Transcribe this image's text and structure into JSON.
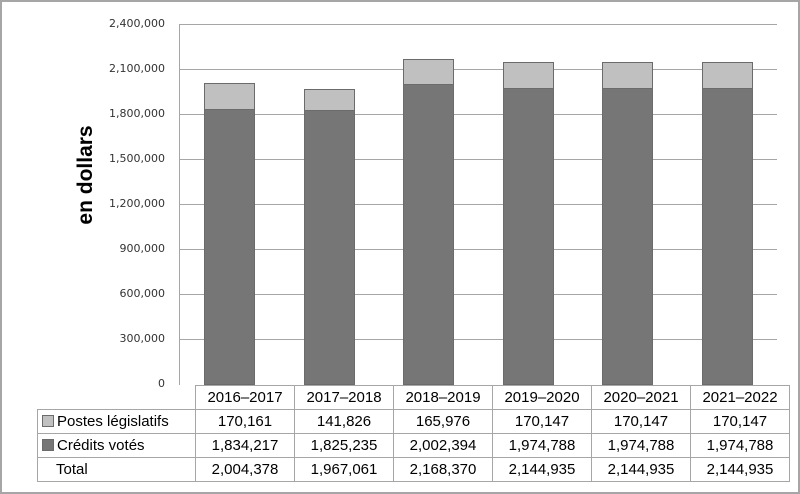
{
  "chart_data": {
    "type": "bar",
    "stacked": true,
    "title": "",
    "xlabel": "",
    "ylabel": "en dollars",
    "ylim": [
      0,
      2400000
    ],
    "yticks": [
      "0",
      "300,000",
      "600,000",
      "900,000",
      "1,200,000",
      "1,500,000",
      "1,800,000",
      "2,100,000",
      "2,400,000"
    ],
    "grid": true,
    "legend_position": "data-table",
    "categories": [
      "2016–2017",
      "2017–2018",
      "2018–2019",
      "2019–2020",
      "2020–2021",
      "2021–2022"
    ],
    "series": [
      {
        "name": "Crédits votés",
        "color": "#767676",
        "values": [
          1834217,
          1825235,
          2002394,
          1974788,
          1974788,
          1974788
        ]
      },
      {
        "name": "Postes législatifs",
        "color": "#c0c0c0",
        "values": [
          170161,
          141826,
          165976,
          170147,
          170147,
          170147
        ]
      }
    ],
    "totals": [
      2004378,
      1967061,
      2168370,
      2144935,
      2144935,
      2144935
    ]
  },
  "axis": {
    "ylabel": "en dollars",
    "ticks": [
      "2,400,000",
      "2,100,000",
      "1,800,000",
      "1,500,000",
      "1,200,000",
      "900,000",
      "600,000",
      "300,000",
      "0"
    ]
  },
  "table": {
    "headers": [
      "2016–2017",
      "2017–2018",
      "2018–2019",
      "2019–2020",
      "2020–2021",
      "2021–2022"
    ],
    "rows": [
      {
        "label": "Postes législatifs",
        "values": [
          "170,161",
          "141,826",
          "165,976",
          "170,147",
          "170,147",
          "170,147"
        ]
      },
      {
        "label": "Crédits votés",
        "values": [
          "1,834,217",
          "1,825,235",
          "2,002,394",
          "1,974,788",
          "1,974,788",
          "1,974,788"
        ]
      },
      {
        "label": "Total",
        "values": [
          "2,004,378",
          "1,967,061",
          "2,168,370",
          "2,144,935",
          "2,144,935",
          "2,144,935"
        ]
      }
    ]
  }
}
